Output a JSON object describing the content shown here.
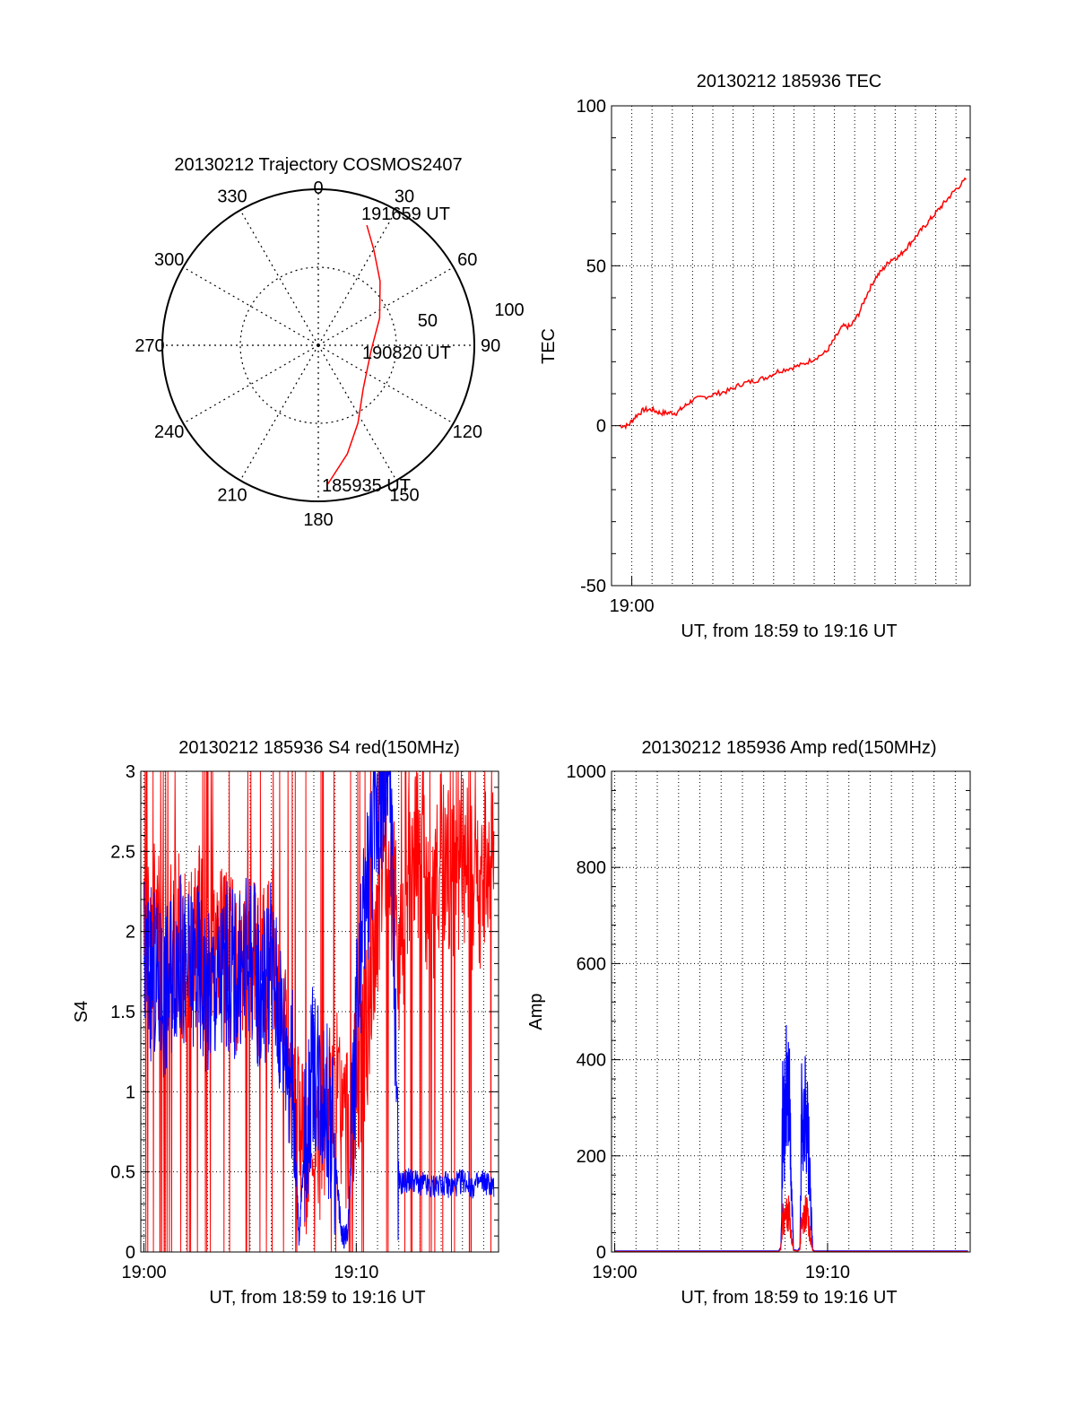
{
  "colors": {
    "red": "#ff0000",
    "blue": "#0000ff",
    "axis": "#000000",
    "grid": "#000000"
  },
  "chart_data": [
    {
      "type": "polar",
      "title": "20130212 Trajectory COSMOS2407",
      "azimuth_labels": [
        "0",
        "30",
        "60",
        "90",
        "120",
        "150",
        "180",
        "210",
        "240",
        "270",
        "300",
        "330"
      ],
      "radius_labels": [
        "50",
        "100"
      ],
      "radial_axis": "zenith angle, 0 at center, 100 at edge",
      "series": [
        {
          "color": "red",
          "points": [
            {
              "az": 176,
              "zen": 89
            },
            {
              "az": 165,
              "zen": 72
            },
            {
              "az": 153,
              "zen": 56
            },
            {
              "az": 134,
              "zen": 40
            },
            {
              "az": 96,
              "zen": 34
            },
            {
              "az": 66,
              "zen": 43
            },
            {
              "az": 44,
              "zen": 57
            },
            {
              "az": 30,
              "zen": 71
            },
            {
              "az": 22,
              "zen": 83
            }
          ]
        }
      ],
      "annotations": [
        {
          "text": "191659 UT",
          "at": "end"
        },
        {
          "text": "190820 UT",
          "at": "middle"
        },
        {
          "text": "185935 UT",
          "at": "start"
        }
      ]
    },
    {
      "type": "line",
      "title": "20130212 185936 TEC",
      "xlabel": "UT, from 18:59 to 19:16 UT",
      "ylabel": "TEC",
      "xlim": [
        -1.0,
        16.7
      ],
      "ylim": [
        -50,
        100
      ],
      "yticks": [
        "-50",
        "0",
        "50",
        "100"
      ],
      "xticks": [
        {
          "value": 0,
          "label": "19:00"
        }
      ],
      "x_gridlines_every_min": 1,
      "grid": true,
      "series": [
        {
          "color": "red",
          "x": [
            -0.6,
            -0.2,
            0.2,
            0.6,
            1.0,
            1.4,
            1.8,
            2.2,
            2.6,
            3.0,
            3.6,
            4.2,
            4.8,
            5.4,
            6.0,
            6.6,
            7.2,
            7.8,
            8.4,
            9.0,
            9.6,
            10.0,
            10.4,
            10.8,
            11.2,
            11.6,
            12.0,
            12.4,
            12.8,
            13.2,
            13.6,
            14.0,
            14.4,
            14.8,
            15.2,
            15.6,
            16.0,
            16.5
          ],
          "values": [
            0,
            0,
            3,
            5,
            5,
            4,
            4,
            4,
            6,
            8,
            9,
            10,
            11,
            13,
            14,
            15,
            17,
            18,
            19,
            21,
            23,
            27,
            31,
            31,
            35,
            41,
            46,
            49,
            52,
            53,
            56,
            59,
            62,
            65,
            68,
            71,
            74,
            77
          ]
        }
      ]
    },
    {
      "type": "line",
      "title": "20130212 185936 S4 red(150MHz)",
      "xlabel": "UT, from 18:59 to 19:16 UT",
      "ylabel": "S4",
      "xlim": [
        -0.15,
        16.7
      ],
      "ylim": [
        0,
        3
      ],
      "yticks": [
        "0",
        "0.5",
        "1",
        "1.5",
        "2",
        "2.5",
        "3"
      ],
      "xticks": [
        {
          "value": 0,
          "label": "19:00"
        },
        {
          "value": 10,
          "label": "19:10"
        }
      ],
      "x_gridlines_every_min": 1,
      "grid": true,
      "series": [
        {
          "color": "red",
          "x": [
            0,
            0.5,
            1,
            1.5,
            2,
            2.5,
            3,
            3.5,
            4,
            4.5,
            5,
            5.5,
            6,
            6.5,
            7,
            7.5,
            8,
            8.5,
            9,
            9.5,
            10,
            10.5,
            11,
            11.5,
            12,
            12.5,
            13,
            13.5,
            14,
            14.5,
            15,
            15.5,
            16,
            16.5
          ],
          "values": [
            1.9,
            2.1,
            1.8,
            2.0,
            1.8,
            2.1,
            1.7,
            1.9,
            1.8,
            1.8,
            1.8,
            1.7,
            1.9,
            1.5,
            1.0,
            0.7,
            0.5,
            0.9,
            1.0,
            0.7,
            1.1,
            1.4,
            2.0,
            2.6,
            1.8,
            2.4,
            2.5,
            2.0,
            2.5,
            2.3,
            2.5,
            2.2,
            2.3,
            2.5
          ],
          "spikes_to": [
            0,
            3
          ]
        },
        {
          "color": "blue",
          "x": [
            0,
            0.5,
            1,
            1.5,
            2,
            2.5,
            3,
            3.5,
            4,
            4.5,
            5,
            5.5,
            6,
            6.5,
            7,
            7.3,
            7.6,
            8,
            8.5,
            9,
            9.3,
            9.6,
            10,
            10.5,
            11,
            11.3,
            11.6,
            12,
            12.5,
            13,
            13.5,
            14,
            14.5,
            15,
            15.5,
            16,
            16.5
          ],
          "values": [
            1.8,
            1.7,
            1.6,
            1.9,
            1.7,
            1.8,
            1.6,
            1.7,
            1.8,
            1.7,
            1.9,
            1.6,
            1.8,
            1.4,
            1.1,
            0.1,
            0.7,
            1.2,
            1.0,
            0.6,
            0.1,
            0.1,
            1.4,
            2.3,
            2.8,
            3.0,
            3.0,
            0.42,
            0.45,
            0.43,
            0.4,
            0.44,
            0.4,
            0.45,
            0.41,
            0.44,
            0.4
          ]
        }
      ]
    },
    {
      "type": "line",
      "title": "20130212 185936 Amp red(150MHz)",
      "xlabel": "UT, from 18:59 to 19:16 UT",
      "ylabel": "Amp",
      "xlim": [
        -0.15,
        16.7
      ],
      "ylim": [
        0,
        1000
      ],
      "yticks": [
        "0",
        "200",
        "400",
        "600",
        "800",
        "1000"
      ],
      "xticks": [
        {
          "value": 0,
          "label": "19:00"
        },
        {
          "value": 10,
          "label": "19:10"
        }
      ],
      "x_gridlines_every_min": 1,
      "grid": true,
      "series": [
        {
          "color": "blue",
          "x": [
            0,
            7.7,
            7.8,
            7.9,
            8.0,
            8.1,
            8.2,
            8.3,
            8.4,
            8.6,
            8.7,
            8.8,
            8.9,
            9.0,
            9.1,
            9.2,
            9.3,
            9.4,
            16.6
          ],
          "values": [
            2,
            2,
            10,
            420,
            380,
            500,
            430,
            200,
            5,
            3,
            10,
            480,
            350,
            460,
            300,
            150,
            5,
            2,
            2
          ]
        },
        {
          "color": "red",
          "x": [
            0,
            7.7,
            7.8,
            7.9,
            8.0,
            8.1,
            8.2,
            8.3,
            8.4,
            8.6,
            8.7,
            8.8,
            8.9,
            9.0,
            9.1,
            9.2,
            9.3,
            9.4,
            16.6
          ],
          "values": [
            1,
            1,
            5,
            100,
            90,
            120,
            110,
            50,
            3,
            2,
            5,
            120,
            90,
            130,
            80,
            40,
            3,
            1,
            1
          ]
        }
      ]
    }
  ]
}
